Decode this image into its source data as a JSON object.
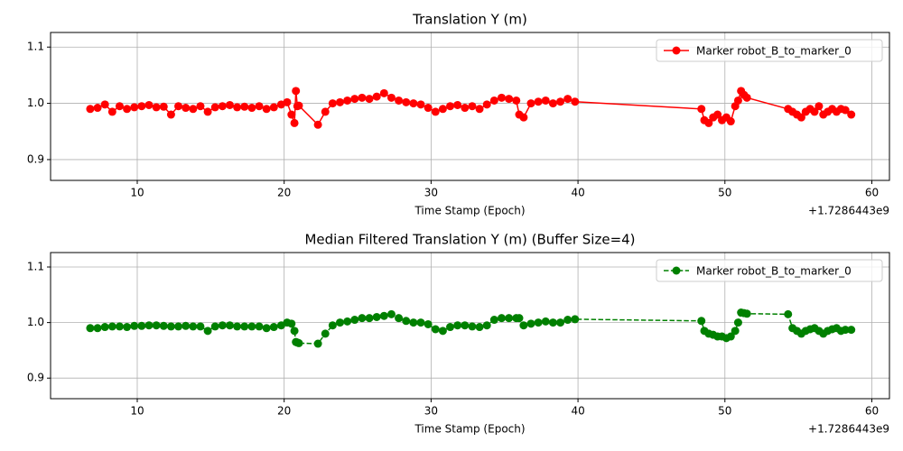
{
  "chart_data": [
    {
      "type": "line",
      "title": "Translation Y (m)",
      "x_label": "Time Stamp (Epoch)",
      "x_offset_label": "+1.7286443e9",
      "x": [
        6.8,
        7.3,
        7.8,
        8.3,
        8.8,
        9.3,
        9.8,
        10.3,
        10.8,
        11.3,
        11.8,
        12.3,
        12.8,
        13.3,
        13.8,
        14.3,
        14.8,
        15.3,
        15.8,
        16.3,
        16.8,
        17.3,
        17.8,
        18.3,
        18.8,
        19.3,
        19.8,
        20.2,
        20.5,
        20.7,
        20.8,
        20.9,
        21.0,
        22.3,
        22.8,
        23.3,
        23.8,
        24.3,
        24.8,
        25.3,
        25.8,
        26.3,
        26.8,
        27.3,
        27.8,
        28.3,
        28.8,
        29.3,
        29.8,
        30.3,
        30.8,
        31.3,
        31.8,
        32.3,
        32.8,
        33.3,
        33.8,
        34.3,
        34.8,
        35.3,
        35.8,
        36.0,
        36.3,
        36.8,
        37.3,
        37.8,
        38.3,
        38.8,
        39.3,
        39.8,
        48.4,
        48.6,
        48.9,
        49.2,
        49.5,
        49.8,
        50.1,
        50.4,
        50.7,
        50.9,
        51.1,
        51.3,
        51.5,
        54.3,
        54.6,
        54.9,
        55.2,
        55.5,
        55.8,
        56.1,
        56.4,
        56.7,
        57.0,
        57.3,
        57.6,
        57.9,
        58.2,
        58.6
      ],
      "series": [
        {
          "name": "Marker robot_B_to_marker_0",
          "color": "#ff0000",
          "linestyle": "solid",
          "marker": "o",
          "values": [
            0.99,
            0.992,
            0.998,
            0.985,
            0.995,
            0.99,
            0.993,
            0.995,
            0.997,
            0.993,
            0.994,
            0.98,
            0.995,
            0.992,
            0.99,
            0.995,
            0.985,
            0.993,
            0.995,
            0.997,
            0.993,
            0.994,
            0.992,
            0.995,
            0.99,
            0.993,
            0.998,
            1.002,
            0.98,
            0.965,
            1.022,
            0.995,
            0.996,
            0.962,
            0.985,
            1.0,
            1.002,
            1.005,
            1.008,
            1.01,
            1.008,
            1.012,
            1.018,
            1.01,
            1.005,
            1.002,
            1.0,
            0.998,
            0.992,
            0.985,
            0.99,
            0.995,
            0.997,
            0.992,
            0.995,
            0.99,
            0.998,
            1.005,
            1.01,
            1.008,
            1.005,
            0.98,
            0.975,
            1.0,
            1.003,
            1.005,
            1.0,
            1.003,
            1.008,
            1.003,
            0.99,
            0.97,
            0.965,
            0.975,
            0.98,
            0.97,
            0.975,
            0.968,
            0.995,
            1.005,
            1.022,
            1.015,
            1.01,
            0.99,
            0.985,
            0.98,
            0.975,
            0.985,
            0.99,
            0.985,
            0.995,
            0.98,
            0.985,
            0.99,
            0.985,
            0.99,
            0.988,
            0.98
          ]
        }
      ],
      "xlim": [
        4.1,
        61.2
      ],
      "xticks": [
        10,
        20,
        30,
        40,
        50,
        60
      ],
      "ylim": [
        0.863,
        1.126
      ],
      "yticks": [
        0.9,
        {
          "value": 1,
          "label": "1.0"
        },
        1.1
      ],
      "grid": true,
      "legend": "upper right"
    },
    {
      "type": "line",
      "title": "Median Filtered Translation Y (m) (Buffer Size=4)",
      "x_label": "Time Stamp (Epoch)",
      "x_offset_label": "+1.7286443e9",
      "x": [
        6.8,
        7.3,
        7.8,
        8.3,
        8.8,
        9.3,
        9.8,
        10.3,
        10.8,
        11.3,
        11.8,
        12.3,
        12.8,
        13.3,
        13.8,
        14.3,
        14.8,
        15.3,
        15.8,
        16.3,
        16.8,
        17.3,
        17.8,
        18.3,
        18.8,
        19.3,
        19.8,
        20.2,
        20.5,
        20.7,
        20.8,
        20.9,
        21.0,
        22.3,
        22.8,
        23.3,
        23.8,
        24.3,
        24.8,
        25.3,
        25.8,
        26.3,
        26.8,
        27.3,
        27.8,
        28.3,
        28.8,
        29.3,
        29.8,
        30.3,
        30.8,
        31.3,
        31.8,
        32.3,
        32.8,
        33.3,
        33.8,
        34.3,
        34.8,
        35.3,
        35.8,
        36.0,
        36.3,
        36.8,
        37.3,
        37.8,
        38.3,
        38.8,
        39.3,
        39.8,
        48.4,
        48.6,
        48.9,
        49.2,
        49.5,
        49.8,
        50.1,
        50.4,
        50.7,
        50.9,
        51.1,
        51.3,
        51.5,
        54.3,
        54.6,
        54.9,
        55.2,
        55.5,
        55.8,
        56.1,
        56.4,
        56.7,
        57.0,
        57.3,
        57.6,
        57.9,
        58.2,
        58.6
      ],
      "series": [
        {
          "name": "Marker robot_B_to_marker_0",
          "color": "#008000",
          "linestyle": "dashed",
          "marker": "o",
          "values": [
            0.99,
            0.99,
            0.992,
            0.993,
            0.993,
            0.992,
            0.994,
            0.994,
            0.995,
            0.995,
            0.994,
            0.993,
            0.993,
            0.994,
            0.993,
            0.993,
            0.985,
            0.993,
            0.995,
            0.995,
            0.993,
            0.993,
            0.993,
            0.993,
            0.99,
            0.992,
            0.995,
            1.0,
            0.998,
            0.985,
            0.965,
            0.964,
            0.963,
            0.962,
            0.98,
            0.995,
            1.0,
            1.002,
            1.005,
            1.008,
            1.008,
            1.01,
            1.012,
            1.015,
            1.008,
            1.003,
            1.0,
            1.0,
            0.997,
            0.988,
            0.985,
            0.992,
            0.995,
            0.995,
            0.993,
            0.992,
            0.995,
            1.005,
            1.008,
            1.008,
            1.008,
            1.008,
            0.995,
            0.998,
            1.0,
            1.002,
            1.0,
            1.0,
            1.005,
            1.006,
            1.003,
            0.985,
            0.98,
            0.978,
            0.975,
            0.975,
            0.972,
            0.975,
            0.985,
            1.0,
            1.018,
            1.017,
            1.016,
            1.015,
            0.99,
            0.985,
            0.98,
            0.985,
            0.988,
            0.99,
            0.985,
            0.98,
            0.985,
            0.988,
            0.99,
            0.985,
            0.987,
            0.987
          ]
        }
      ],
      "xlim": [
        4.1,
        61.2
      ],
      "xticks": [
        10,
        20,
        30,
        40,
        50,
        60
      ],
      "ylim": [
        0.863,
        1.126
      ],
      "yticks": [
        0.9,
        {
          "value": 1,
          "label": "1.0"
        },
        1.1
      ],
      "grid": true,
      "legend": "upper right"
    }
  ]
}
